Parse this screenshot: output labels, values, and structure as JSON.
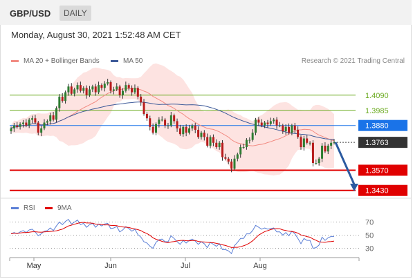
{
  "header": {
    "symbol": "GBP/USD",
    "timeframe": "DAILY",
    "datetime": "Monday, August 30, 2021 1:52:48 AM CET"
  },
  "legend": {
    "bollinger": {
      "label": "MA 20 + Bollinger Bands",
      "color": "#f28b82"
    },
    "ma50": {
      "label": "MA 50",
      "color": "#3d5a99"
    },
    "credit": "Research © 2021 Trading Central",
    "rsi": {
      "label": "RSI",
      "color": "#5b7fd6"
    },
    "rsi_ma": {
      "label": "9MA",
      "color": "#e00000"
    }
  },
  "chart_data": {
    "type": "candlestick",
    "price_ylim": [
      1.34,
      1.418
    ],
    "levels": [
      {
        "value": 1.409,
        "label": "1.4090",
        "kind": "target",
        "color": "#6aaa1e"
      },
      {
        "value": 1.3985,
        "label": "1.3985",
        "kind": "target",
        "color": "#6aaa1e"
      },
      {
        "value": 1.388,
        "label": "1.3880",
        "kind": "pivot",
        "color": "#1a73e8"
      },
      {
        "value": 1.3763,
        "label": "1.3763",
        "kind": "last",
        "color": "#333333"
      },
      {
        "value": 1.357,
        "label": "1.3570",
        "kind": "support",
        "color": "#e00000"
      },
      {
        "value": 1.343,
        "label": "1.3430",
        "kind": "support",
        "color": "#e00000"
      }
    ],
    "x_ticks": [
      "May",
      "Jun",
      "Jul",
      "Aug"
    ],
    "closes": [
      1.386,
      1.388,
      1.387,
      1.389,
      1.39,
      1.388,
      1.392,
      1.393,
      1.39,
      1.383,
      1.386,
      1.39,
      1.391,
      1.395,
      1.392,
      1.4,
      1.408,
      1.405,
      1.411,
      1.415,
      1.41,
      1.413,
      1.416,
      1.412,
      1.414,
      1.409,
      1.413,
      1.415,
      1.411,
      1.416,
      1.414,
      1.417,
      1.418,
      1.412,
      1.413,
      1.415,
      1.409,
      1.412,
      1.416,
      1.414,
      1.411,
      1.414,
      1.408,
      1.404,
      1.396,
      1.393,
      1.387,
      1.383,
      1.389,
      1.392,
      1.392,
      1.388,
      1.388,
      1.395,
      1.391,
      1.386,
      1.382,
      1.387,
      1.383,
      1.386,
      1.388,
      1.385,
      1.38,
      1.383,
      1.38,
      1.374,
      1.38,
      1.376,
      1.373,
      1.376,
      1.366,
      1.365,
      1.363,
      1.358,
      1.365,
      1.368,
      1.373,
      1.373,
      1.378,
      1.378,
      1.383,
      1.392,
      1.39,
      1.388,
      1.39,
      1.389,
      1.391,
      1.392,
      1.388,
      1.388,
      1.384,
      1.387,
      1.383,
      1.388,
      1.385,
      1.38,
      1.373,
      1.379,
      1.376,
      1.376,
      1.362,
      1.362,
      1.365,
      1.374,
      1.37,
      1.374,
      1.376,
      1.3763
    ],
    "rsi_ylim": [
      20,
      80
    ],
    "rsi_levels": [
      70,
      50,
      30
    ],
    "rsi": [
      52,
      54,
      52,
      55,
      57,
      54,
      58,
      59,
      55,
      49,
      52,
      56,
      57,
      61,
      57,
      64,
      70,
      66,
      71,
      74,
      67,
      70,
      73,
      66,
      68,
      62,
      66,
      68,
      62,
      67,
      64,
      67,
      68,
      60,
      61,
      63,
      55,
      58,
      63,
      60,
      56,
      59,
      51,
      47,
      40,
      38,
      33,
      30,
      39,
      43,
      44,
      40,
      40,
      49,
      45,
      40,
      36,
      42,
      38,
      42,
      44,
      41,
      36,
      40,
      37,
      31,
      39,
      36,
      33,
      37,
      28,
      28,
      26,
      22,
      34,
      39,
      45,
      45,
      52,
      52,
      57,
      65,
      62,
      59,
      61,
      59,
      60,
      61,
      55,
      55,
      50,
      54,
      49,
      56,
      52,
      45,
      37,
      45,
      42,
      42,
      30,
      31,
      35,
      47,
      42,
      46,
      48,
      48
    ]
  }
}
